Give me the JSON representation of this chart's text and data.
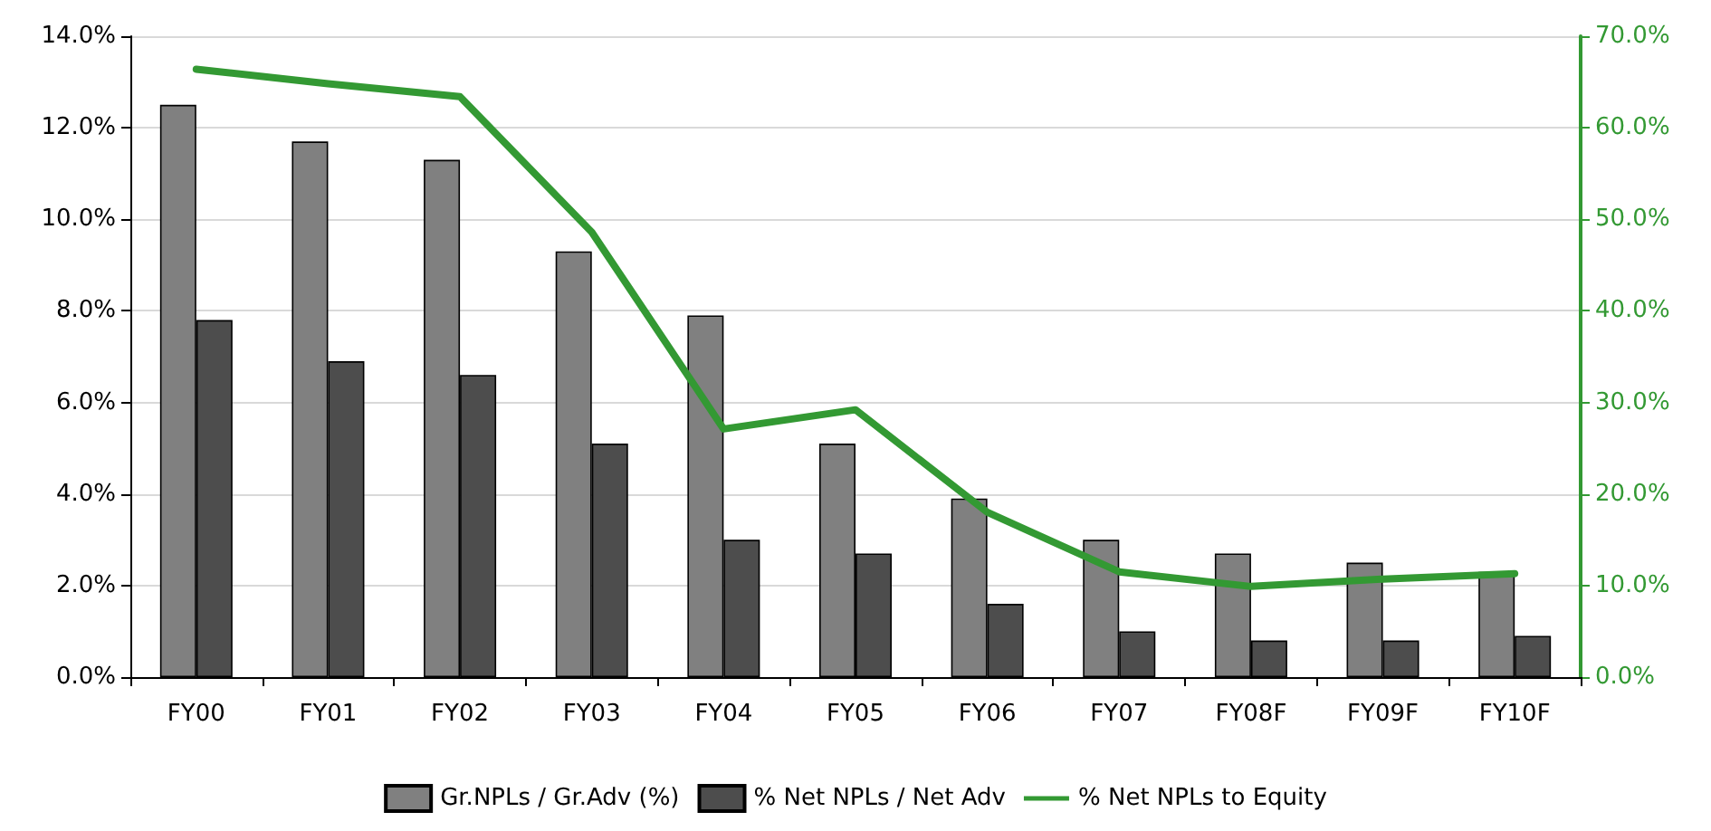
{
  "chart_data": {
    "type": "bar",
    "categories": [
      "FY00",
      "FY01",
      "FY02",
      "FY03",
      "FY04",
      "FY05",
      "FY06",
      "FY07",
      "FY08F",
      "FY09F",
      "FY10F"
    ],
    "series": [
      {
        "name": "Gr.NPLs / Gr.Adv (%)",
        "color": "#808080",
        "values": [
          12.5,
          11.7,
          11.3,
          9.3,
          7.9,
          5.1,
          3.9,
          3.0,
          2.7,
          2.5,
          2.3
        ]
      },
      {
        "name": "% Net NPLs / Net Adv",
        "color": "#4d4d4d",
        "values": [
          7.8,
          6.9,
          6.6,
          5.1,
          3.0,
          2.7,
          1.6,
          1.0,
          0.8,
          0.8,
          0.9
        ]
      },
      {
        "name": "% Net NPLs to Equity",
        "type": "line",
        "axis": "y2",
        "color": "#339933",
        "values": [
          66.4,
          64.8,
          63.4,
          48.6,
          27.1,
          29.2,
          18.0,
          11.5,
          9.9,
          10.7,
          11.3
        ]
      }
    ],
    "ylim": [
      0,
      14
    ],
    "yticks": [
      {
        "value": 0,
        "label": "0.0%"
      },
      {
        "value": 2,
        "label": "2.0%"
      },
      {
        "value": 4,
        "label": "4.0%"
      },
      {
        "value": 6,
        "label": "6.0%"
      },
      {
        "value": 8,
        "label": "8.0%"
      },
      {
        "value": 10,
        "label": "10.0%"
      },
      {
        "value": 12,
        "label": "12.0%"
      },
      {
        "value": 14,
        "label": "14.0%"
      }
    ],
    "y2lim": [
      0,
      70
    ],
    "y2ticks": [
      {
        "value": 0,
        "label": "0.0%"
      },
      {
        "value": 10,
        "label": "10.0%"
      },
      {
        "value": 20,
        "label": "20.0%"
      },
      {
        "value": 30,
        "label": "30.0%"
      },
      {
        "value": 40,
        "label": "40.0%"
      },
      {
        "value": 50,
        "label": "50.0%"
      },
      {
        "value": 60,
        "label": "60.0%"
      },
      {
        "value": 70,
        "label": "70.0%"
      }
    ],
    "grid": "y",
    "legend": "bottom",
    "marker": "none",
    "line_style": "solid"
  }
}
